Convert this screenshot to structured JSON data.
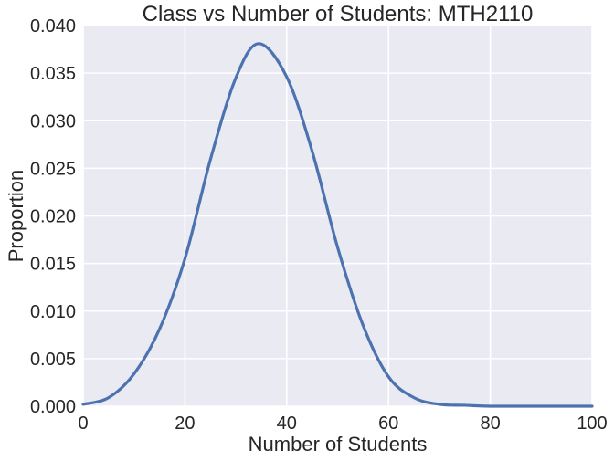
{
  "chart_data": {
    "type": "line",
    "title": "Class vs Number of Students: MTH2110",
    "xlabel": "Number of Students",
    "ylabel": "Proportion",
    "xlim": [
      0,
      100
    ],
    "ylim": [
      0,
      0.04
    ],
    "xticks": [
      0,
      20,
      40,
      60,
      80,
      100
    ],
    "xtick_labels": [
      "0",
      "20",
      "40",
      "60",
      "80",
      "100"
    ],
    "yticks": [
      0,
      0.005,
      0.01,
      0.015,
      0.02,
      0.025,
      0.03,
      0.035,
      0.04
    ],
    "ytick_labels": [
      "0.000",
      "0.005",
      "0.010",
      "0.015",
      "0.020",
      "0.025",
      "0.030",
      "0.035",
      "0.040"
    ],
    "grid": true,
    "background_color": "#eaeaf2",
    "grid_color": "#ffffff",
    "series": [
      {
        "color": "#4c72b0",
        "x": [
          0,
          5,
          10,
          15,
          20,
          25,
          30,
          34.5,
          40,
          45,
          50,
          55,
          60,
          65,
          70,
          75,
          80,
          90,
          100
        ],
        "y": [
          0.0002,
          0.0009,
          0.0034,
          0.0081,
          0.0155,
          0.0259,
          0.0345,
          0.0381,
          0.0346,
          0.0268,
          0.0167,
          0.0085,
          0.0031,
          0.0009,
          0.0002,
          0.0001,
          0.0,
          0.0,
          0.0
        ]
      }
    ]
  }
}
